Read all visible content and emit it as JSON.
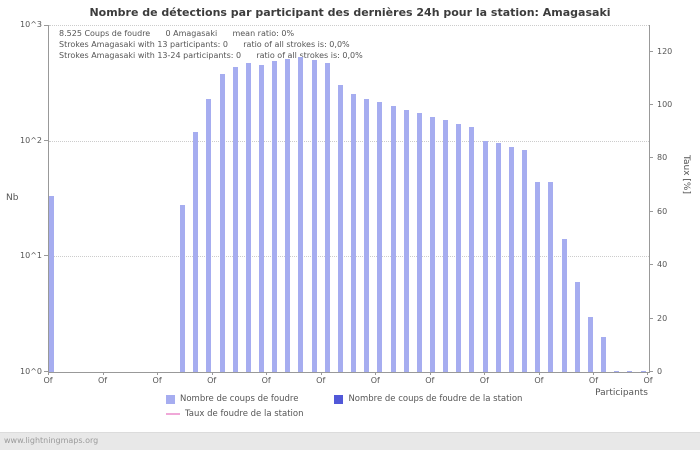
{
  "title": "Nombre de détections par participant des dernières 24h pour la station: Amagasaki",
  "annotations": [
    {
      "segments": [
        "8.525 Coups de foudre",
        "0 Amagasaki",
        "mean ratio: 0%"
      ]
    },
    {
      "segments": [
        "Strokes Amagasaki with 13 participants: 0",
        "ratio of all strokes is: 0,0%"
      ]
    },
    {
      "segments": [
        "Strokes Amagasaki with 13-24 participants: 0",
        "ratio of all strokes is: 0,0%"
      ]
    }
  ],
  "chart_data": {
    "type": "bar",
    "title": "Nombre de détections par participant des dernières 24h pour la station: Amagasaki",
    "xlabel": "Participants",
    "ylabel_left": "Nb",
    "ylabel_right": "Taux [%]",
    "y_axis_left": {
      "scale": "log",
      "ticks": [
        "10^0",
        "10^1",
        "10^2",
        "10^3"
      ],
      "range": [
        1,
        1000
      ]
    },
    "y_axis_right": {
      "ticks": [
        0,
        20,
        40,
        60,
        80,
        100,
        120
      ],
      "range": [
        0,
        130
      ]
    },
    "x_ticks": [
      "Of",
      "Of",
      "Of",
      "Of",
      "Of",
      "Of",
      "Of",
      "Of",
      "Of",
      "Of",
      "Of",
      "Of"
    ],
    "grid": "dotted-horizontal",
    "legend_position": "bottom",
    "series": [
      {
        "name": "Nombre de coups de foudre",
        "swatch": "square",
        "color": "#a6adf0",
        "values": [
          33,
          0,
          0,
          0,
          0,
          0,
          0,
          0,
          0,
          0,
          28,
          120,
          230,
          380,
          430,
          470,
          450,
          490,
          510,
          530,
          500,
          470,
          300,
          255,
          230,
          215,
          200,
          185,
          172,
          160,
          150,
          140,
          130,
          100,
          95,
          88,
          83,
          44,
          44,
          14,
          6,
          3,
          2,
          1,
          1,
          1
        ]
      },
      {
        "name": "Nombre de coups de foudre de la station",
        "swatch": "square",
        "color": "#5158d8",
        "values": []
      },
      {
        "name": "Taux de foudre de la station",
        "swatch": "line",
        "color": "#f0a8d8",
        "values": []
      }
    ]
  },
  "footer": {
    "watermark": "www.lightningmaps.org"
  }
}
